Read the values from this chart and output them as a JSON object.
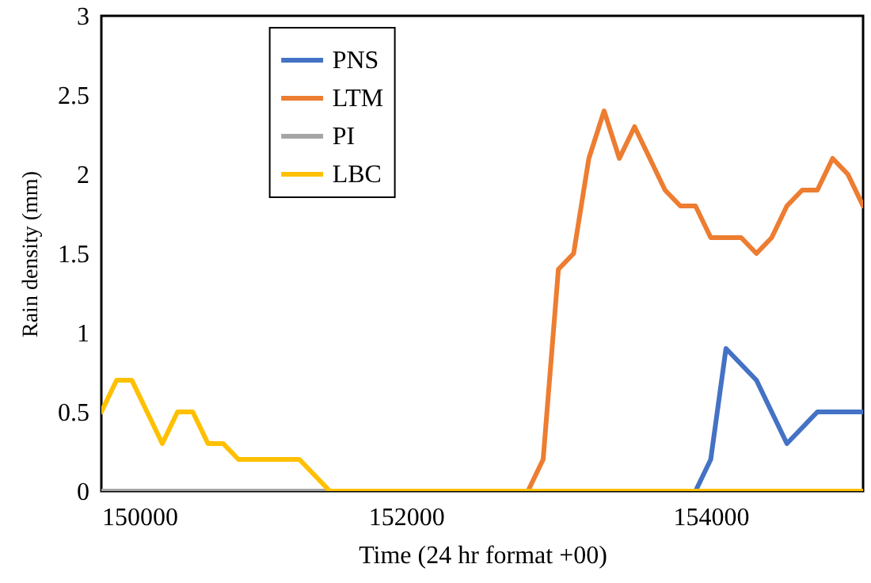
{
  "chart_data": {
    "type": "line",
    "xlabel": "Time (24 hr format +00)",
    "ylabel": "Rain density (mm)",
    "xlim": [
      150000,
      155000
    ],
    "xticks": [
      150000,
      152000,
      154000
    ],
    "ylim": [
      0,
      3
    ],
    "yticks": [
      0,
      0.5,
      1,
      1.5,
      2,
      2.5,
      3
    ],
    "grid": false,
    "legend": "top",
    "marker": "none",
    "line_style": "solid",
    "series": [
      {
        "name": "PNS",
        "color": "#4472c4",
        "x": [
          153900,
          154000,
          154100,
          154200,
          154300,
          154400,
          154500,
          154600,
          154700,
          154800,
          154900,
          155000
        ],
        "values": [
          0,
          0.2,
          0.9,
          0.8,
          0.7,
          0.5,
          0.3,
          0.4,
          0.5,
          0.5,
          0.5,
          0.5
        ]
      },
      {
        "name": "LTM",
        "color": "#ed7d31",
        "x": [
          150000,
          152800,
          152900,
          153000,
          153100,
          153200,
          153300,
          153400,
          153500,
          153600,
          153700,
          153800,
          153900,
          154000,
          154100,
          154200,
          154300,
          154400,
          154500,
          154600,
          154700,
          154800,
          154900,
          155000
        ],
        "values": [
          0,
          0,
          0.2,
          1.4,
          1.5,
          2.1,
          2.4,
          2.1,
          2.3,
          2.1,
          1.9,
          1.8,
          1.8,
          1.6,
          1.6,
          1.6,
          1.5,
          1.6,
          1.8,
          1.9,
          1.9,
          2.1,
          2.0,
          1.8
        ]
      },
      {
        "name": "PI",
        "color": "#a5a5a5",
        "x": [
          150000,
          155000
        ],
        "values": [
          0,
          0
        ]
      },
      {
        "name": "LBC",
        "color": "#ffc000",
        "x": [
          150000,
          150100,
          150200,
          150300,
          150400,
          150500,
          150600,
          150700,
          150800,
          150900,
          151000,
          151100,
          151200,
          151300,
          151400,
          151500,
          155000
        ],
        "values": [
          0.5,
          0.7,
          0.7,
          0.5,
          0.3,
          0.5,
          0.5,
          0.3,
          0.3,
          0.2,
          0.2,
          0.2,
          0.2,
          0.2,
          0.1,
          0,
          0
        ]
      }
    ]
  }
}
